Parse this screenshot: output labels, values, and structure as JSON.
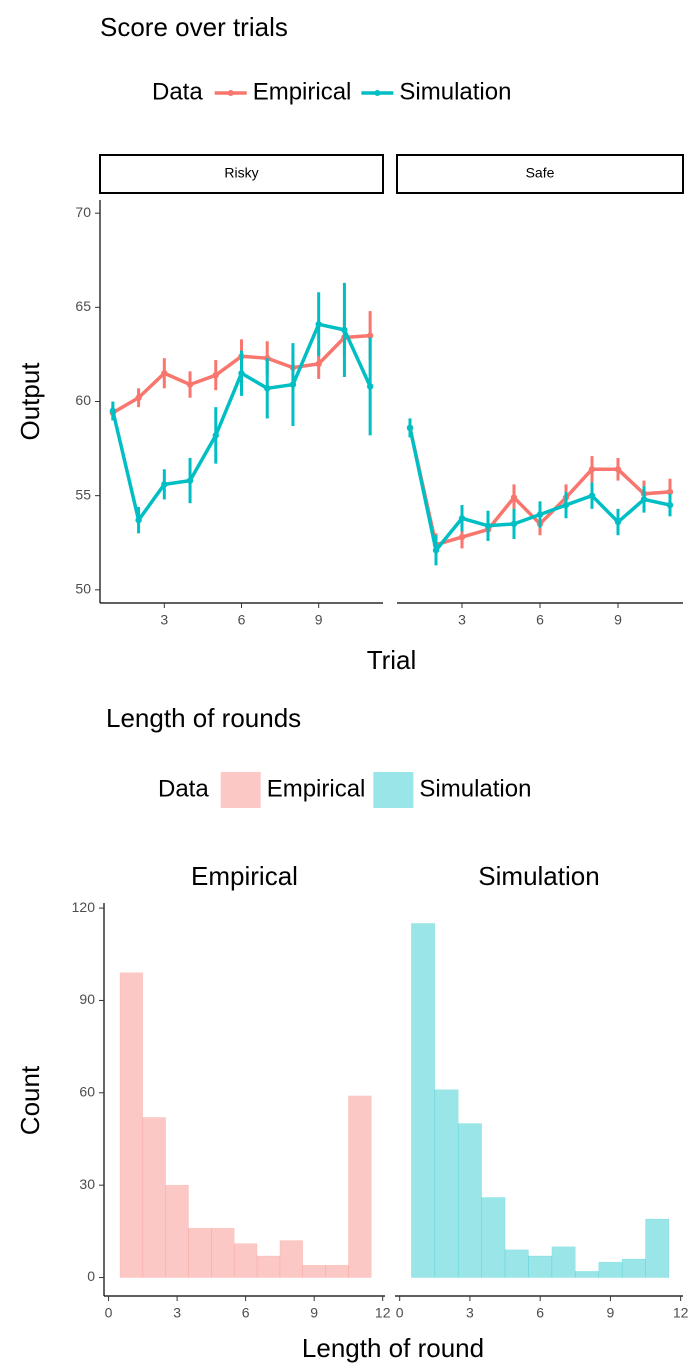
{
  "chart_data": [
    {
      "type": "line",
      "title": "Score over trials",
      "legend_title": "Data",
      "facets": [
        "Risky",
        "Safe"
      ],
      "x_label": "Trial",
      "y_label": "Output",
      "x": [
        1,
        2,
        3,
        4,
        5,
        6,
        7,
        8,
        9,
        10,
        11
      ],
      "xlim": [
        0.5,
        11.5
      ],
      "xticks": [
        3,
        6,
        9
      ],
      "ylim": [
        49.3,
        70.7
      ],
      "yticks": [
        50,
        55,
        60,
        65,
        70
      ],
      "series": [
        {
          "name": "Empirical",
          "color": "#f8766d",
          "values": [
            [
              59.4,
              60.2,
              61.5,
              60.9,
              61.4,
              62.4,
              62.3,
              61.8,
              62.0,
              63.4,
              63.5
            ],
            [
              58.6,
              52.4,
              52.8,
              53.2,
              54.9,
              53.5,
              54.9,
              56.4,
              56.4,
              55.1,
              55.2
            ]
          ],
          "errors": [
            [
              0.4,
              0.5,
              0.8,
              0.7,
              0.8,
              0.9,
              0.9,
              0.9,
              0.8,
              1.0,
              1.3
            ],
            [
              0.5,
              0.6,
              0.6,
              0.6,
              0.7,
              0.6,
              0.7,
              0.7,
              0.6,
              0.7,
              0.7
            ]
          ]
        },
        {
          "name": "Simulation",
          "color": "#00bfc4",
          "values": [
            [
              59.5,
              53.7,
              55.6,
              55.8,
              58.2,
              61.5,
              60.7,
              60.9,
              64.1,
              63.8,
              60.8
            ],
            [
              58.6,
              52.1,
              53.8,
              53.4,
              53.5,
              54.0,
              54.5,
              55.0,
              53.6,
              54.8,
              54.5
            ]
          ],
          "errors": [
            [
              0.5,
              0.7,
              0.8,
              1.2,
              1.5,
              1.2,
              1.6,
              2.2,
              1.7,
              2.5,
              2.6
            ],
            [
              0.5,
              0.8,
              0.7,
              0.8,
              0.8,
              0.7,
              0.7,
              0.7,
              0.7,
              0.7,
              0.6
            ]
          ]
        }
      ]
    },
    {
      "type": "histogram",
      "title": "Length of rounds",
      "legend_title": "Data",
      "x_label": "Length of round",
      "y_label": "Count",
      "opacity": 0.4,
      "bins": [
        0.5,
        1.5,
        2.5,
        3.5,
        4.5,
        5.5,
        6.5,
        7.5,
        8.5,
        9.5,
        10.5,
        11.5
      ],
      "xlim": [
        -0.2,
        12.1
      ],
      "xticks": [
        0,
        3,
        6,
        9,
        12
      ],
      "ylim": [
        -6,
        121
      ],
      "yticks": [
        0,
        30,
        60,
        90,
        120
      ],
      "series": [
        {
          "name": "Empirical",
          "color": "#f8766d",
          "values": [
            99,
            52,
            30,
            16,
            16,
            11,
            7,
            12,
            4,
            4,
            59
          ]
        },
        {
          "name": "Simulation",
          "color": "#00bfc4",
          "values": [
            115,
            61,
            50,
            26,
            9,
            7,
            10,
            2,
            5,
            6,
            19
          ]
        }
      ]
    }
  ]
}
